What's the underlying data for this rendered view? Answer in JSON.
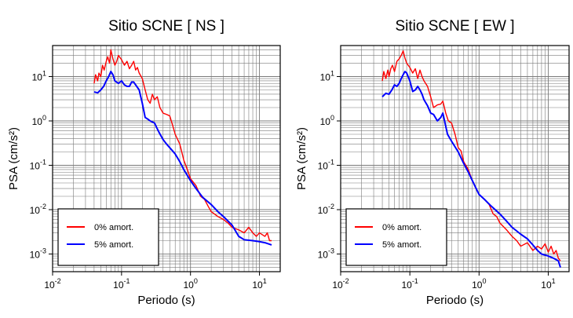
{
  "chart_data": [
    {
      "type": "line",
      "title": "Sitio SCNE [ NS ]",
      "xlabel": "Periodo (s)",
      "ylabel": "PSA (cm/s²)",
      "xscale": "log",
      "yscale": "log",
      "xlim": [
        0.01,
        20
      ],
      "ylim": [
        0.0004,
        50
      ],
      "grid": true,
      "legend_position": "bottom-left",
      "series": [
        {
          "name": "0% amort.",
          "color": "#ff0000",
          "x": [
            0.04,
            0.042,
            0.045,
            0.047,
            0.05,
            0.053,
            0.056,
            0.06,
            0.063,
            0.067,
            0.07,
            0.075,
            0.08,
            0.085,
            0.09,
            0.1,
            0.11,
            0.12,
            0.13,
            0.14,
            0.15,
            0.16,
            0.17,
            0.18,
            0.2,
            0.22,
            0.24,
            0.26,
            0.28,
            0.3,
            0.33,
            0.36,
            0.4,
            0.45,
            0.5,
            0.55,
            0.6,
            0.7,
            0.8,
            0.9,
            1.0,
            1.2,
            1.4,
            1.6,
            1.8,
            2.0,
            2.5,
            3.0,
            3.5,
            4.0,
            5.0,
            6.0,
            7.0,
            8.0,
            9.0,
            10.0,
            12.0,
            13.0,
            14.0,
            15.0
          ],
          "y": [
            7,
            11,
            8,
            12,
            10,
            18,
            14,
            22,
            28,
            20,
            40,
            25,
            18,
            22,
            30,
            24,
            18,
            22,
            15,
            18,
            22,
            14,
            16,
            12,
            9,
            5,
            3,
            2.5,
            4,
            3,
            3.5,
            2,
            1.5,
            1.4,
            1.3,
            0.8,
            0.5,
            0.3,
            0.13,
            0.08,
            0.05,
            0.035,
            0.02,
            0.017,
            0.012,
            0.009,
            0.007,
            0.006,
            0.005,
            0.004,
            0.0035,
            0.003,
            0.004,
            0.003,
            0.0025,
            0.003,
            0.0025,
            0.003,
            0.002,
            0.002
          ]
        },
        {
          "name": "5% amort.",
          "color": "#0000ff",
          "x": [
            0.04,
            0.045,
            0.05,
            0.055,
            0.06,
            0.065,
            0.07,
            0.075,
            0.08,
            0.09,
            0.1,
            0.11,
            0.12,
            0.13,
            0.14,
            0.15,
            0.16,
            0.18,
            0.2,
            0.22,
            0.24,
            0.26,
            0.3,
            0.35,
            0.4,
            0.45,
            0.5,
            0.6,
            0.7,
            0.8,
            1.0,
            1.2,
            1.5,
            2.0,
            2.5,
            3.0,
            4.0,
            5.0,
            6.0,
            8.0,
            10.0,
            12.0,
            15.0
          ],
          "y": [
            4.5,
            4.3,
            5,
            6,
            8,
            10,
            13,
            11,
            8,
            7,
            8,
            6.5,
            6,
            6,
            7.5,
            7.5,
            6.5,
            5,
            2.5,
            1.2,
            1.1,
            1.0,
            0.9,
            0.55,
            0.38,
            0.3,
            0.25,
            0.18,
            0.12,
            0.08,
            0.045,
            0.03,
            0.019,
            0.013,
            0.009,
            0.007,
            0.0045,
            0.0025,
            0.0021,
            0.002,
            0.0019,
            0.0018,
            0.0016
          ]
        }
      ]
    },
    {
      "type": "line",
      "title": "Sitio SCNE [ EW ]",
      "xlabel": "Periodo (s)",
      "ylabel": "PSA (cm/s²)",
      "xscale": "log",
      "yscale": "log",
      "xlim": [
        0.01,
        20
      ],
      "ylim": [
        0.0004,
        50
      ],
      "grid": true,
      "legend_position": "bottom-left",
      "series": [
        {
          "name": "0% amort.",
          "color": "#ff0000",
          "x": [
            0.04,
            0.042,
            0.045,
            0.048,
            0.05,
            0.053,
            0.056,
            0.06,
            0.065,
            0.07,
            0.075,
            0.08,
            0.085,
            0.09,
            0.1,
            0.11,
            0.12,
            0.13,
            0.14,
            0.15,
            0.16,
            0.18,
            0.2,
            0.22,
            0.25,
            0.28,
            0.3,
            0.33,
            0.36,
            0.4,
            0.45,
            0.5,
            0.55,
            0.6,
            0.7,
            0.8,
            0.9,
            1.0,
            1.2,
            1.4,
            1.6,
            1.8,
            2.0,
            2.5,
            3.0,
            3.5,
            4.0,
            5.0,
            6.0,
            7.0,
            8.0,
            9.0,
            10.0,
            11.0,
            12.0,
            13.0,
            14.0,
            15.0
          ],
          "y": [
            8,
            13,
            9,
            14,
            10,
            15,
            18,
            13,
            22,
            25,
            30,
            38,
            26,
            20,
            16,
            12,
            15,
            9,
            14,
            10,
            8,
            6,
            3.5,
            2.0,
            2.3,
            2.4,
            2.8,
            1.5,
            1.0,
            0.9,
            0.5,
            0.25,
            0.21,
            0.12,
            0.08,
            0.045,
            0.03,
            0.022,
            0.017,
            0.013,
            0.008,
            0.007,
            0.005,
            0.0035,
            0.0025,
            0.002,
            0.0015,
            0.0018,
            0.0012,
            0.0015,
            0.0013,
            0.0017,
            0.0011,
            0.0015,
            0.001,
            0.0012,
            0.0008,
            0.0007
          ]
        },
        {
          "name": "5% amort.",
          "color": "#0000ff",
          "x": [
            0.04,
            0.045,
            0.05,
            0.055,
            0.06,
            0.065,
            0.07,
            0.075,
            0.08,
            0.085,
            0.09,
            0.1,
            0.11,
            0.12,
            0.13,
            0.14,
            0.15,
            0.16,
            0.18,
            0.2,
            0.22,
            0.25,
            0.28,
            0.3,
            0.35,
            0.4,
            0.5,
            0.6,
            0.7,
            0.8,
            1.0,
            1.2,
            1.5,
            2.0,
            2.5,
            3.0,
            4.0,
            5.0,
            6.0,
            7.0,
            8.0,
            10.0,
            12.0,
            14.0,
            15.0
          ],
          "y": [
            3.5,
            4.2,
            4.0,
            5.0,
            6.5,
            6.0,
            7.0,
            9.0,
            11.0,
            13.0,
            12.0,
            8.0,
            4.6,
            5.0,
            6.0,
            5.0,
            4.0,
            3.0,
            2.2,
            1.5,
            1.4,
            1.0,
            1.2,
            1.5,
            0.5,
            0.35,
            0.2,
            0.11,
            0.07,
            0.045,
            0.022,
            0.017,
            0.012,
            0.008,
            0.0055,
            0.004,
            0.0028,
            0.0022,
            0.0016,
            0.0012,
            0.001,
            0.0009,
            0.0008,
            0.0007,
            0.0005
          ]
        }
      ]
    }
  ]
}
